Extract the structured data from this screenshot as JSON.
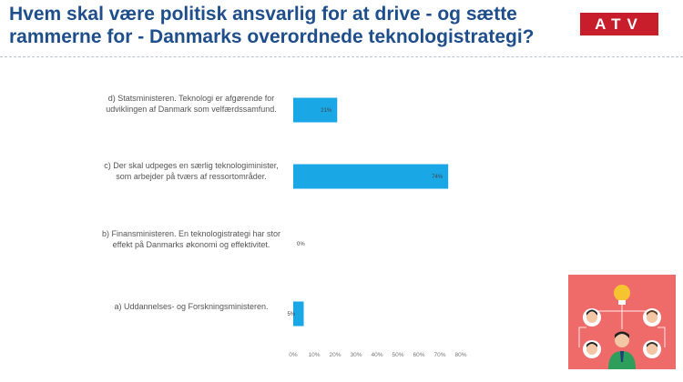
{
  "header": {
    "title": "Hvem skal være politisk ansvarlig for at drive - og sætte rammerne for - Danmarks overordnede teknologistrategi?",
    "logo_text": "ATV"
  },
  "chart_data": {
    "type": "bar",
    "orientation": "horizontal",
    "categories": [
      "d)   Statsministeren. Teknologi er afgørende for udviklingen af Danmark som velfærdssamfund.",
      "c)   Der skal udpeges en særlig teknologiminister, som arbejder på tværs af ressortområder.",
      "b)   Finansministeren. En teknologistrategi har stor effekt på Danmarks økonomi og effektivitet.",
      "a)   Uddannelses- og Forskningsministeren."
    ],
    "values": [
      21,
      74,
      0,
      5
    ],
    "value_labels": [
      "21%",
      "74%",
      "0%",
      "5%"
    ],
    "xticks": [
      "0%",
      "10%",
      "20%",
      "30%",
      "40%",
      "50%",
      "60%",
      "70%",
      "80%"
    ],
    "xlim": [
      0,
      80
    ],
    "unit": "%",
    "color": "#1aa7e6",
    "grid": false,
    "legend": "none"
  },
  "colors": {
    "title": "#1f4e8c",
    "logo": "#c81e2b",
    "illustration_bg": "#ef6b6a",
    "bulb": "#f6c431"
  }
}
